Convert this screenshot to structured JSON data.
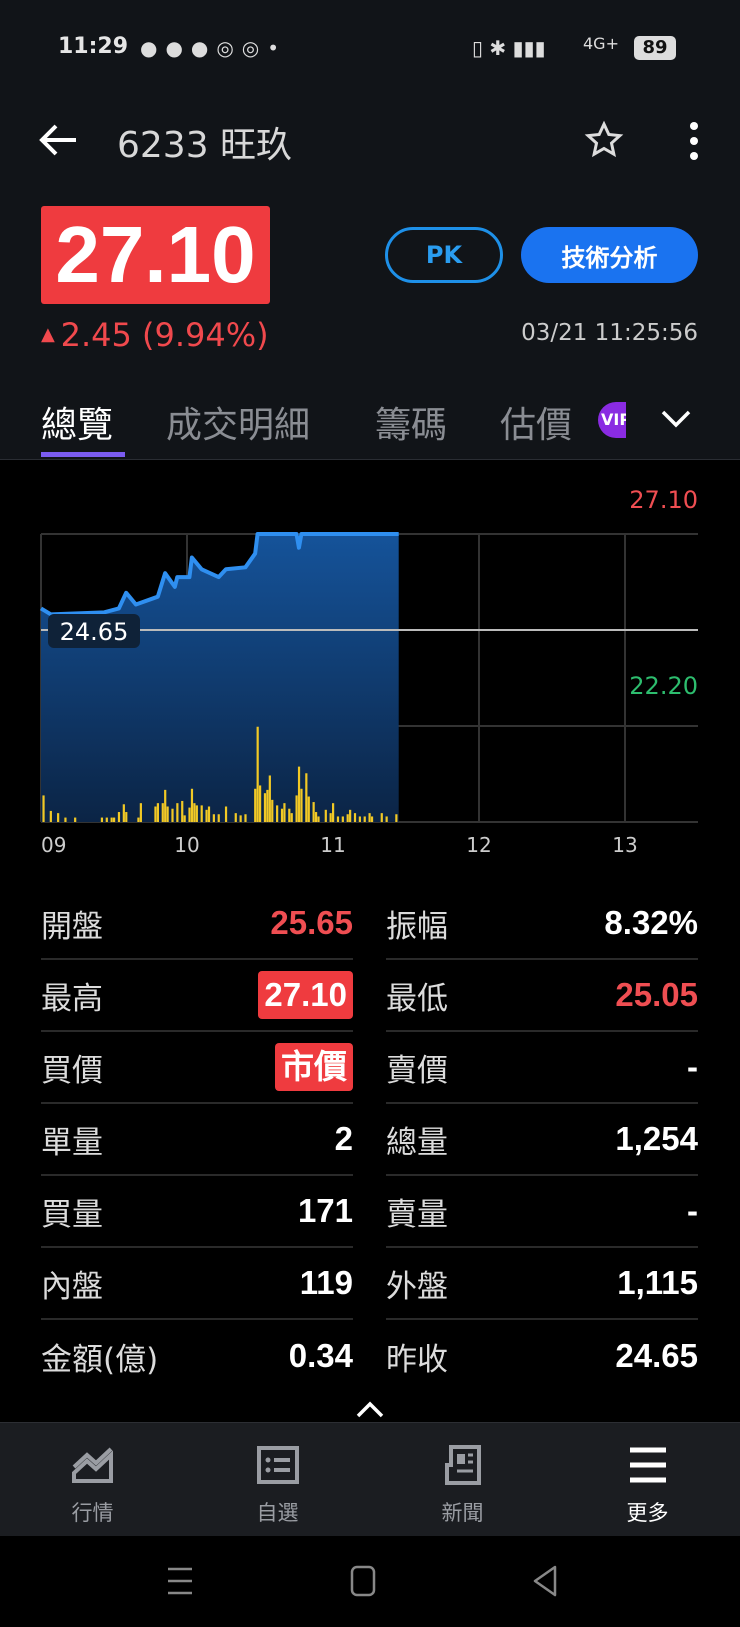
{
  "status_bar": {
    "time": "11:29",
    "battery": "89",
    "network": "4G+"
  },
  "header": {
    "title": "6233 旺玖",
    "back_icon": "arrow-left-icon",
    "favorite_icon": "star-outline-icon",
    "more_icon": "more-vertical-icon"
  },
  "quote": {
    "price": "27.10",
    "change": "2.45 (9.94%)",
    "direction": "up",
    "timestamp": "03/21 11:25:56",
    "pk_label": "PK",
    "analysis_label": "技術分析"
  },
  "tabs": [
    {
      "label": "總覽",
      "active": true
    },
    {
      "label": "成交明細"
    },
    {
      "label": "籌碼"
    },
    {
      "label": "估價",
      "badge": "VIP"
    }
  ],
  "colors": {
    "up": "#ef3b3f",
    "down": "#2dbd6e",
    "accent": "#1a73f0",
    "line": "#2f8ff0",
    "volume": "#f2c925"
  },
  "chart_data": {
    "type": "line",
    "x_ticks": [
      "09",
      "10",
      "11",
      "12",
      "13"
    ],
    "xlim": [
      "09:00",
      "13:30"
    ],
    "ylim": [
      19.75,
      27.1
    ],
    "y_labels": {
      "high": "27.10",
      "reference": "24.65",
      "low": "22.20"
    },
    "price": {
      "x": [
        "09:00",
        "09:04",
        "09:26",
        "09:32",
        "09:35",
        "09:39",
        "09:48",
        "09:51",
        "09:55",
        "09:56",
        "10:01",
        "10:02",
        "10:06",
        "10:13",
        "10:16",
        "10:24",
        "10:28",
        "10:29",
        "10:45",
        "10:46",
        "10:47",
        "11:27"
      ],
      "y": [
        25.2,
        25.05,
        25.1,
        25.2,
        25.6,
        25.3,
        25.5,
        26.1,
        25.75,
        26.0,
        26.0,
        26.5,
        26.2,
        26.0,
        26.2,
        26.25,
        26.6,
        27.1,
        27.1,
        26.75,
        27.1,
        27.1
      ]
    },
    "volume": {
      "x": [
        "09:01",
        "09:04",
        "09:07",
        "09:10",
        "09:14",
        "09:25",
        "09:27",
        "09:29",
        "09:30",
        "09:32",
        "09:34",
        "09:35",
        "09:40",
        "09:41",
        "09:47",
        "09:48",
        "09:50",
        "09:51",
        "09:52",
        "09:54",
        "09:56",
        "09:58",
        "09:59",
        "10:01",
        "10:02",
        "10:03",
        "10:04",
        "10:06",
        "10:08",
        "10:09",
        "10:11",
        "10:13",
        "10:16",
        "10:20",
        "10:22",
        "10:24",
        "10:28",
        "10:29",
        "10:30",
        "10:32",
        "10:33",
        "10:34",
        "10:35",
        "10:37",
        "10:39",
        "10:40",
        "10:42",
        "10:43",
        "10:45",
        "10:46",
        "10:47",
        "10:49",
        "10:50",
        "10:52",
        "10:53",
        "10:54",
        "10:57",
        "10:59",
        "11:00",
        "11:02",
        "11:04",
        "11:06",
        "11:07",
        "11:09",
        "11:11",
        "11:13",
        "11:15",
        "11:16",
        "11:20",
        "11:22",
        "11:26"
      ],
      "y": [
        24,
        10,
        8,
        4,
        4,
        4,
        4,
        4,
        4,
        9,
        16,
        9,
        4,
        17,
        14,
        17,
        17,
        29,
        14,
        12,
        17,
        19,
        6,
        13,
        30,
        17,
        15,
        15,
        11,
        14,
        7,
        7,
        14,
        8,
        6,
        7,
        30,
        86,
        33,
        26,
        29,
        42,
        20,
        15,
        12,
        17,
        12,
        8,
        24,
        50,
        30,
        44,
        23,
        18,
        9,
        5,
        11,
        8,
        17,
        5,
        5,
        7,
        11,
        8,
        5,
        5,
        8,
        5,
        8,
        5,
        7
      ]
    },
    "grid": true
  },
  "stats": [
    [
      {
        "label": "開盤",
        "value": "25.65",
        "style": "red"
      },
      {
        "label": "振幅",
        "value": "8.32%"
      }
    ],
    [
      {
        "label": "最高",
        "value": "27.10",
        "style": "highlight"
      },
      {
        "label": "最低",
        "value": "25.05",
        "style": "red"
      }
    ],
    [
      {
        "label": "買價",
        "value": "市價",
        "style": "highlight"
      },
      {
        "label": "賣價",
        "value": "-"
      }
    ],
    [
      {
        "label": "單量",
        "value": "2"
      },
      {
        "label": "總量",
        "value": "1,254"
      }
    ],
    [
      {
        "label": "買量",
        "value": "171"
      },
      {
        "label": "賣量",
        "value": "-"
      }
    ],
    [
      {
        "label": "內盤",
        "value": "119"
      },
      {
        "label": "外盤",
        "value": "1,115"
      }
    ],
    [
      {
        "label": "金額(億)",
        "value": "0.34"
      },
      {
        "label": "昨收",
        "value": "24.65"
      }
    ]
  ],
  "bottom_nav": [
    {
      "label": "行情",
      "icon": "market-chart-icon"
    },
    {
      "label": "自選",
      "icon": "watchlist-icon"
    },
    {
      "label": "新聞",
      "icon": "news-icon"
    },
    {
      "label": "更多",
      "icon": "menu-icon",
      "active": true
    }
  ]
}
